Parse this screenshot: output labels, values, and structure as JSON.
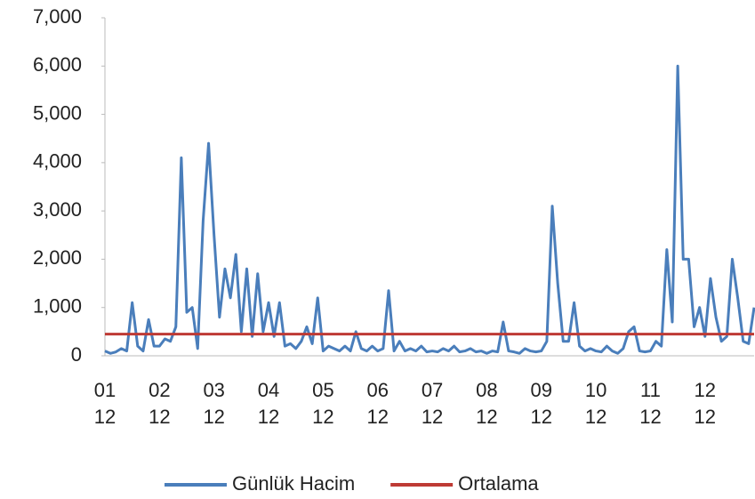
{
  "chart_data": {
    "type": "line",
    "categories": [
      "01\n12",
      null,
      null,
      null,
      null,
      null,
      null,
      null,
      null,
      null,
      "02\n12",
      null,
      null,
      null,
      null,
      null,
      null,
      null,
      null,
      null,
      "03\n12",
      null,
      null,
      null,
      null,
      null,
      null,
      null,
      null,
      null,
      "04\n12",
      null,
      null,
      null,
      null,
      null,
      null,
      null,
      null,
      null,
      "05\n12",
      null,
      null,
      null,
      null,
      null,
      null,
      null,
      null,
      null,
      "06\n12",
      null,
      null,
      null,
      null,
      null,
      null,
      null,
      null,
      null,
      "07\n12",
      null,
      null,
      null,
      null,
      null,
      null,
      null,
      null,
      null,
      "08\n12",
      null,
      null,
      null,
      null,
      null,
      null,
      null,
      null,
      null,
      "09\n12",
      null,
      null,
      null,
      null,
      null,
      null,
      null,
      null,
      null,
      "10\n12",
      null,
      null,
      null,
      null,
      null,
      null,
      null,
      null,
      null,
      "11\n12",
      null,
      null,
      null,
      null,
      null,
      null,
      null,
      null,
      null,
      "12\n12",
      null,
      null,
      null,
      null,
      null,
      null,
      null,
      null,
      null
    ],
    "series": [
      {
        "name": "Günlük Hacim",
        "color": "#4a7ebb",
        "values": [
          100,
          50,
          80,
          150,
          100,
          1100,
          200,
          100,
          750,
          200,
          200,
          350,
          300,
          600,
          4100,
          900,
          1000,
          150,
          2800,
          4400,
          2500,
          800,
          1800,
          1200,
          2100,
          500,
          1800,
          400,
          1700,
          500,
          1100,
          400,
          1100,
          200,
          250,
          150,
          300,
          600,
          250,
          1200,
          100,
          200,
          150,
          100,
          200,
          100,
          500,
          150,
          100,
          200,
          100,
          150,
          1350,
          100,
          300,
          100,
          150,
          100,
          200,
          80,
          100,
          80,
          150,
          100,
          200,
          80,
          100,
          150,
          80,
          100,
          50,
          100,
          80,
          700,
          100,
          80,
          50,
          150,
          100,
          80,
          100,
          300,
          3100,
          1500,
          300,
          300,
          1100,
          200,
          100,
          150,
          100,
          80,
          200,
          100,
          50,
          150,
          500,
          600,
          100,
          80,
          100,
          300,
          200,
          2200,
          700,
          6000,
          2000,
          2000,
          600,
          1000,
          400,
          1600,
          800,
          300,
          400,
          2000,
          1200,
          300,
          250,
          1000
        ]
      },
      {
        "name": "Ortalama",
        "color": "#be3a34",
        "values": [
          450,
          450,
          450,
          450,
          450,
          450,
          450,
          450,
          450,
          450,
          450,
          450,
          450,
          450,
          450,
          450,
          450,
          450,
          450,
          450,
          450,
          450,
          450,
          450,
          450,
          450,
          450,
          450,
          450,
          450,
          450,
          450,
          450,
          450,
          450,
          450,
          450,
          450,
          450,
          450,
          450,
          450,
          450,
          450,
          450,
          450,
          450,
          450,
          450,
          450,
          450,
          450,
          450,
          450,
          450,
          450,
          450,
          450,
          450,
          450,
          450,
          450,
          450,
          450,
          450,
          450,
          450,
          450,
          450,
          450,
          450,
          450,
          450,
          450,
          450,
          450,
          450,
          450,
          450,
          450,
          450,
          450,
          450,
          450,
          450,
          450,
          450,
          450,
          450,
          450,
          450,
          450,
          450,
          450,
          450,
          450,
          450,
          450,
          450,
          450,
          450,
          450,
          450,
          450,
          450,
          450,
          450,
          450,
          450,
          450,
          450,
          450,
          450,
          450,
          450,
          450,
          450,
          450,
          450,
          450
        ]
      }
    ],
    "ylim": [
      0,
      7000
    ],
    "yticks": [
      0,
      {
        "value": 1000,
        "label": "1,000"
      },
      {
        "value": 2000,
        "label": "2,000"
      },
      {
        "value": 3000,
        "label": "3,000"
      },
      {
        "value": 4000,
        "label": "4,000"
      },
      {
        "value": 5000,
        "label": "5,000"
      },
      {
        "value": 6000,
        "label": "6,000"
      },
      {
        "value": 7000,
        "label": "7,000"
      }
    ],
    "legend": "bottom"
  }
}
